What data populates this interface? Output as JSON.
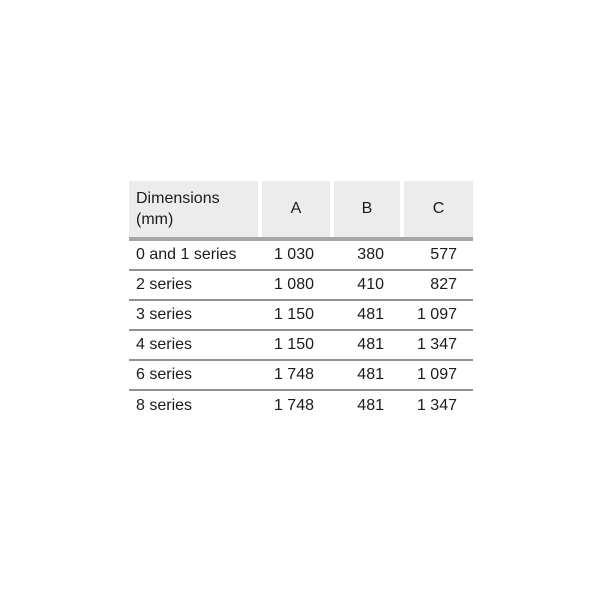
{
  "table": {
    "header": {
      "dimensions_line1": "Dimensions",
      "dimensions_line2": "(mm)",
      "columns": [
        "A",
        "B",
        "C"
      ]
    },
    "rows": [
      {
        "label": "0 and 1 series",
        "values": [
          "1 030",
          "380",
          "577"
        ]
      },
      {
        "label": "2 series",
        "values": [
          "1 080",
          "410",
          "827"
        ]
      },
      {
        "label": "3 series",
        "values": [
          "1 150",
          "481",
          "1 097"
        ]
      },
      {
        "label": "4 series",
        "values": [
          "1 150",
          "481",
          "1 347"
        ]
      },
      {
        "label": "6 series",
        "values": [
          "1 748",
          "481",
          "1 097"
        ]
      },
      {
        "label": "8 series",
        "values": [
          "1 748",
          "481",
          "1 347"
        ]
      }
    ]
  },
  "chart_data": {
    "type": "table",
    "title": "Dimensions (mm)",
    "columns": [
      "Dimensions (mm)",
      "A",
      "B",
      "C"
    ],
    "rows": [
      [
        "0 and 1 series",
        1030,
        380,
        577
      ],
      [
        "2 series",
        1080,
        410,
        827
      ],
      [
        "3 series",
        1150,
        481,
        1097
      ],
      [
        "4 series",
        1150,
        481,
        1347
      ],
      [
        "6 series",
        1748,
        481,
        1097
      ],
      [
        "8 series",
        1748,
        481,
        1347
      ]
    ]
  },
  "colors": {
    "header_bg": "#ececec",
    "bar_color": "#a6a6a6",
    "separator_color": "#909090",
    "text_color": "#1b1b1b"
  }
}
